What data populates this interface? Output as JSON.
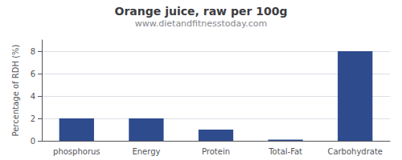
{
  "chart_data": {
    "type": "bar",
    "title": "Orange juice, raw per 100g",
    "subtitle": "www.dietandfitnesstoday.com",
    "categories": [
      "phosphorus",
      "Energy",
      "Protein",
      "Total-Fat",
      "Carbohydrate"
    ],
    "values": [
      2.0,
      2.0,
      1.0,
      0.1,
      8.0
    ],
    "color": "#2e4b8e",
    "ylabel": "Percentage of RDH (%)",
    "ylim": [
      0,
      9
    ],
    "yticks": [
      0,
      2,
      4,
      6,
      8
    ],
    "grid": true
  }
}
